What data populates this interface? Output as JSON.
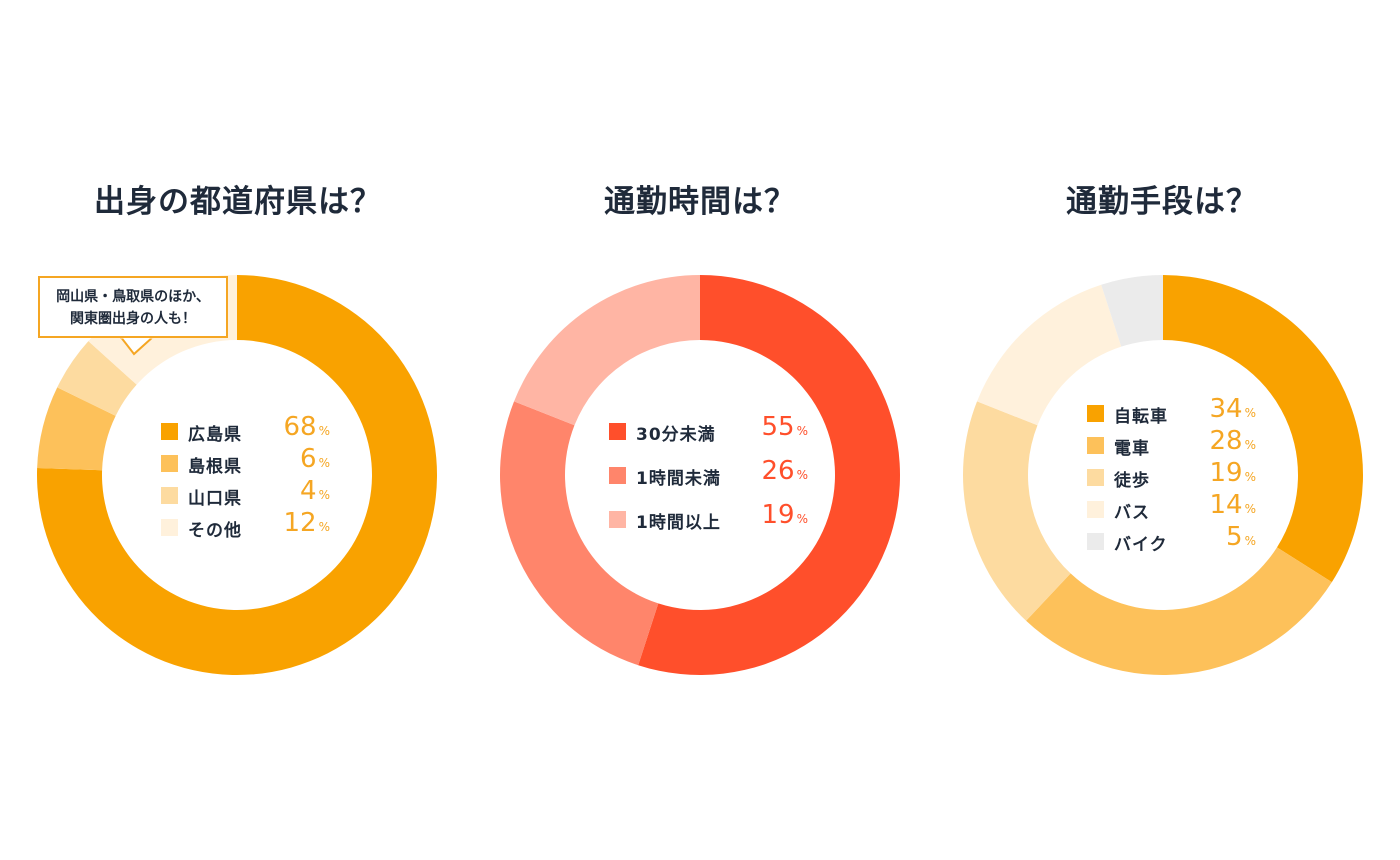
{
  "chart_data": [
    {
      "type": "pie",
      "title": "出身の都道府県は？",
      "unit": "%",
      "annotation": [
        "岡山県・鳥取県のほか、",
        "関東圏出身の人も！"
      ],
      "series": [
        {
          "label": "広島県",
          "value": 68,
          "color": "#f9a200"
        },
        {
          "label": "島根県",
          "value": 6,
          "color": "#fdc15a"
        },
        {
          "label": "山口県",
          "value": 4,
          "color": "#fddba0"
        },
        {
          "label": "その他",
          "value": 12,
          "color": "#fff1dc"
        }
      ],
      "value_color": "#f5a623"
    },
    {
      "type": "pie",
      "title": "通勤時間は？",
      "unit": "%",
      "series": [
        {
          "label": "30分未満",
          "value": 55,
          "color": "#ff4f2b"
        },
        {
          "label": "1時間未満",
          "value": 26,
          "color": "#ff856b"
        },
        {
          "label": "1時間以上",
          "value": 19,
          "color": "#ffb5a4"
        }
      ],
      "value_color": "#ff4f2b"
    },
    {
      "type": "pie",
      "title": "通勤手段は？",
      "unit": "%",
      "series": [
        {
          "label": "自転車",
          "value": 34,
          "color": "#f9a200"
        },
        {
          "label": "電車",
          "value": 28,
          "color": "#fdc15a"
        },
        {
          "label": "徒歩",
          "value": 19,
          "color": "#fddba0"
        },
        {
          "label": "バス",
          "value": 14,
          "color": "#fff1dc"
        },
        {
          "label": "バイク",
          "value": 5,
          "color": "#ebebeb"
        }
      ],
      "value_color": "#f5a623"
    }
  ]
}
